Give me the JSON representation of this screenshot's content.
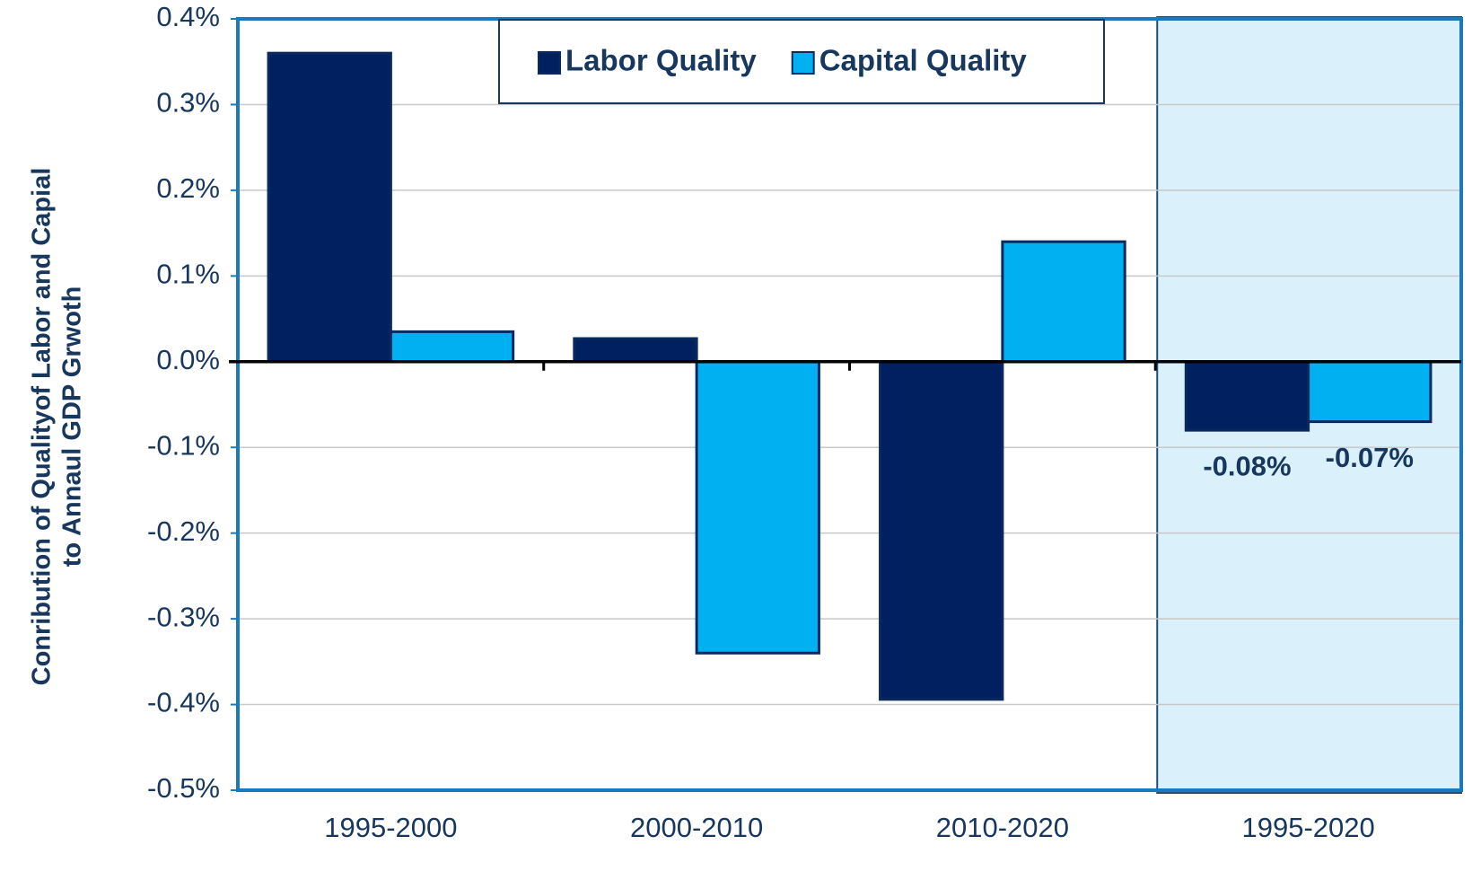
{
  "chart_data": {
    "type": "bar",
    "y_label": [
      "Conribution of Qualityof Labor and Capial",
      "to Annaul GDP Grwoth"
    ],
    "categories": [
      "1995-2000",
      "2000-2010",
      "2010-2020",
      "1995-2020"
    ],
    "series": [
      {
        "name": "Labor Quality",
        "color": "#002060",
        "values": [
          0.36,
          0.027,
          -0.394,
          -0.08
        ],
        "value_labels": [
          null,
          null,
          null,
          "-0.08%"
        ]
      },
      {
        "name": "Capital Quality",
        "color": "#00b0f0",
        "values": [
          0.035,
          -0.34,
          0.14,
          -0.07
        ],
        "value_labels": [
          null,
          null,
          null,
          "-0.07%"
        ]
      }
    ],
    "ylim": [
      -0.5,
      0.4
    ],
    "yticks": [
      {
        "value": -0.5,
        "label": "-0.5%"
      },
      {
        "value": -0.4,
        "label": "-0.4%"
      },
      {
        "value": -0.3,
        "label": "-0.3%"
      },
      {
        "value": -0.2,
        "label": "-0.2%"
      },
      {
        "value": -0.1,
        "label": "-0.1%"
      },
      {
        "value": 0,
        "label": "0.0%"
      },
      {
        "value": 0.1,
        "label": "0.1%"
      },
      {
        "value": 0.2,
        "label": "0.2%"
      },
      {
        "value": 0.3,
        "label": "0.3%"
      },
      {
        "value": 0.4,
        "label": "0.4%"
      }
    ],
    "grid": true
  }
}
